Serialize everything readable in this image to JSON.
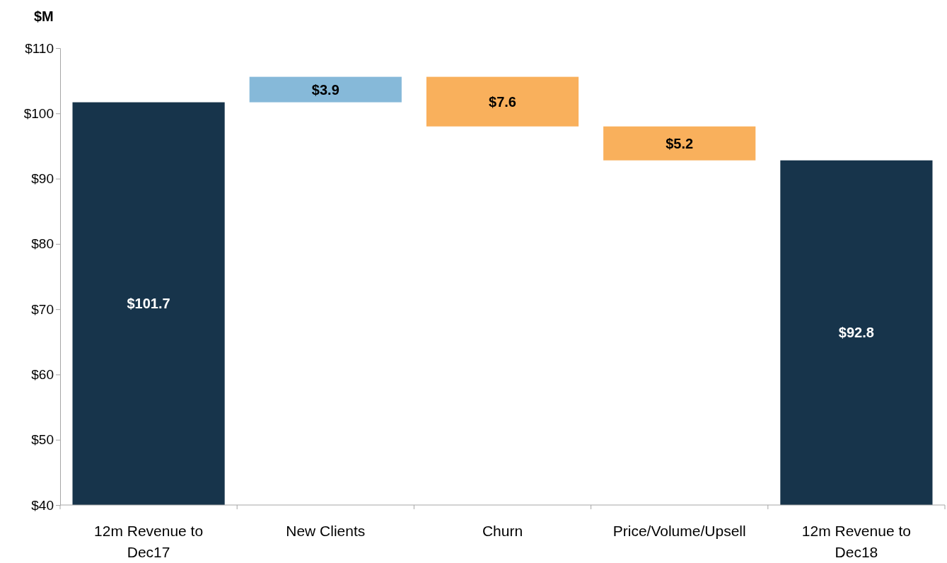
{
  "chart_data": {
    "type": "bar",
    "ylabel": "$M",
    "categories": [
      "12m Revenue to Dec17",
      "New Clients",
      "Churn",
      "Price/Volume/Upsell",
      "12m Revenue to Dec18"
    ],
    "values": [
      101.7,
      3.9,
      -7.6,
      -5.2,
      92.8
    ],
    "base": [
      null,
      101.7,
      105.6,
      98.0,
      null
    ],
    "colors": [
      "#17344b",
      "#86b9d9",
      "#f9b05c",
      "#f9b05c",
      "#17344b"
    ],
    "value_labels": [
      "$101.7",
      "$3.9",
      "$7.6",
      "$5.2",
      "$92.8"
    ],
    "ylim": [
      40,
      110
    ],
    "yticks": [
      {
        "value": 40,
        "label": "$40"
      },
      {
        "value": 50,
        "label": "$50"
      },
      {
        "value": 60,
        "label": "$60"
      },
      {
        "value": 70,
        "label": "$70"
      },
      {
        "value": 80,
        "label": "$80"
      },
      {
        "value": 90,
        "label": "$90"
      },
      {
        "value": 100,
        "label": "$100"
      },
      {
        "value": 110,
        "label": "$110"
      }
    ],
    "grid": false
  }
}
